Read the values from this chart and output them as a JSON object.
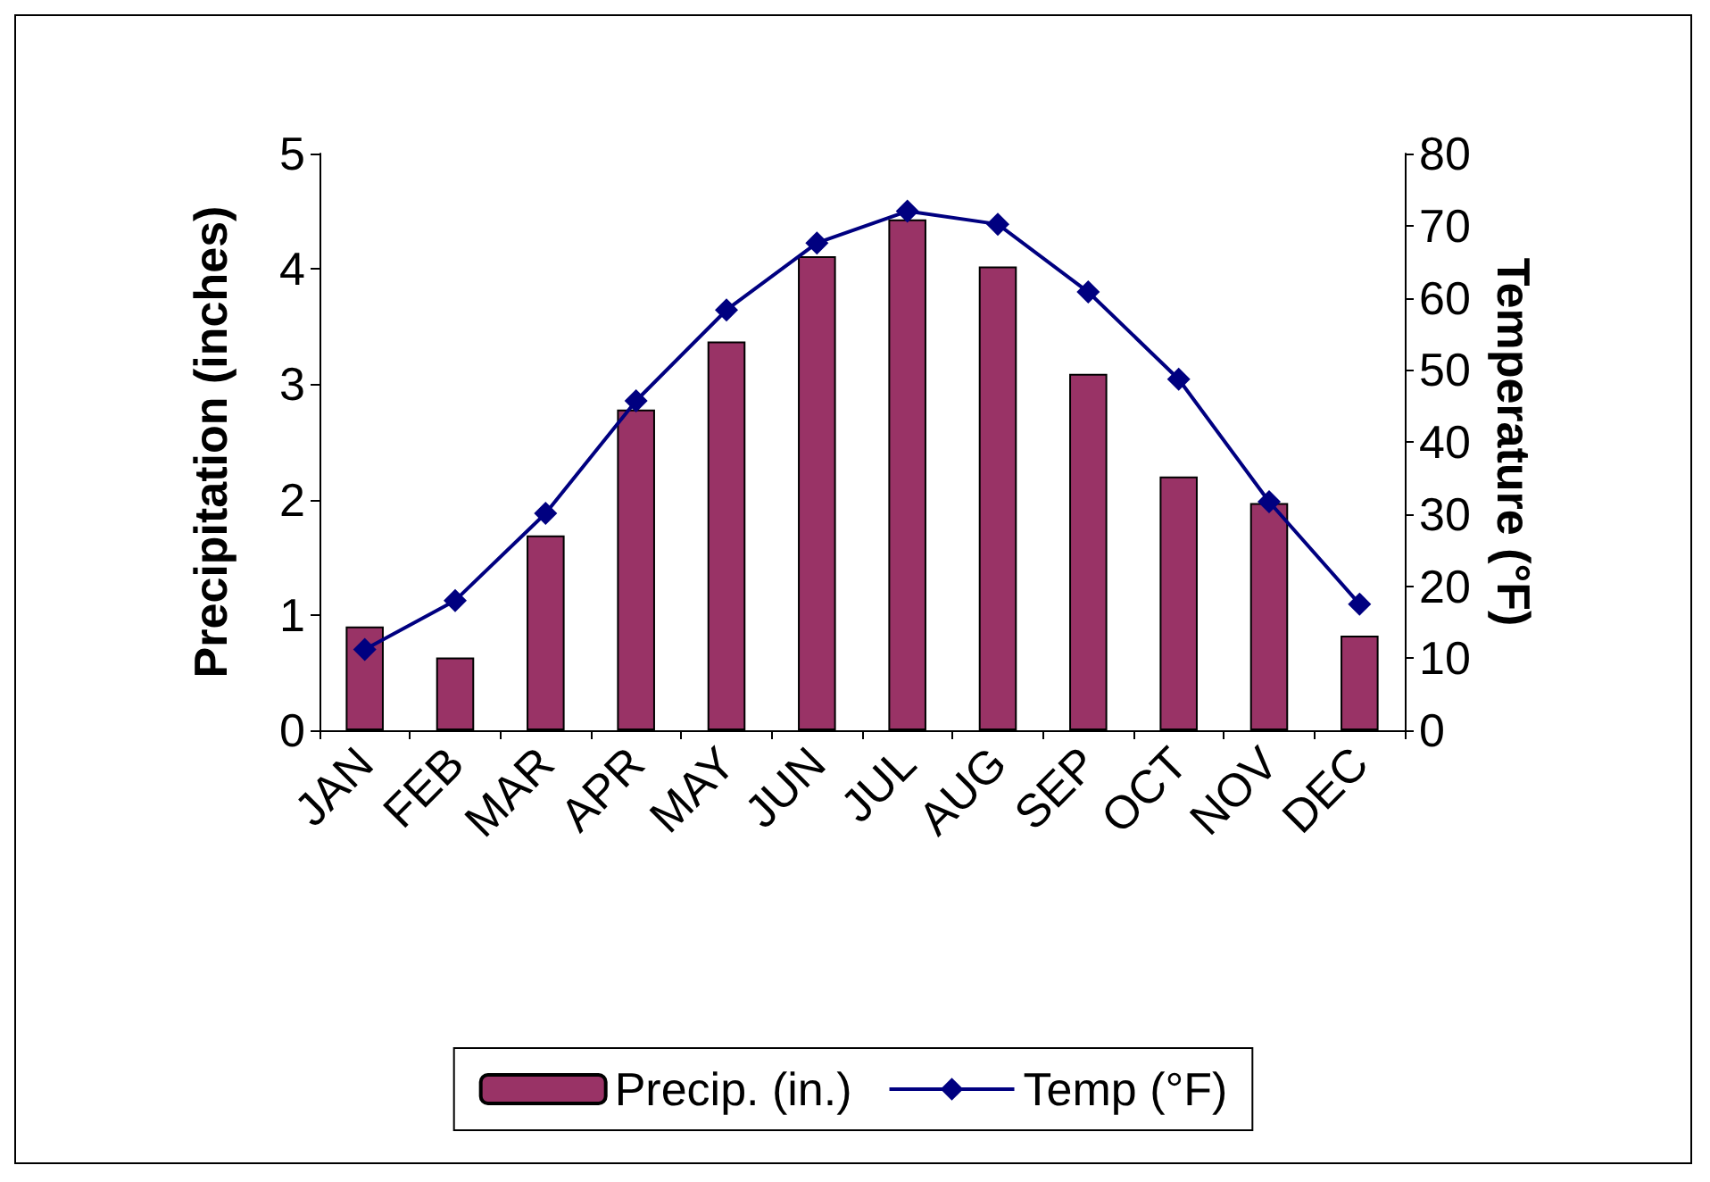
{
  "chart_data": {
    "type": "bar",
    "ylabel": "Precipitation (inches)",
    "y2label": "Temperature (°F)",
    "categories": [
      "JAN",
      "FEB",
      "MAR",
      "APR",
      "MAY",
      "JUN",
      "JUL",
      "AUG",
      "SEP",
      "OCT",
      "NOV",
      "DEC"
    ],
    "series": [
      {
        "name": "Precip. (in.)",
        "color": "#993366",
        "values": [
          0.9,
          0.63,
          1.69,
          2.78,
          3.37,
          4.11,
          4.43,
          4.02,
          3.09,
          2.2,
          1.97,
          0.82
        ]
      },
      {
        "name": "Temp (°F)",
        "type": "line",
        "axis": "y2",
        "color": "#000080",
        "marker": "diamond",
        "line_style": "solid",
        "values": [
          11.2,
          18,
          30.1,
          45.7,
          58.3,
          67.6,
          72,
          70.2,
          60.8,
          48.7,
          31.7,
          17.5
        ]
      }
    ],
    "ylim": [
      0,
      5
    ],
    "yticks": [
      0,
      1,
      2,
      3,
      4,
      5
    ],
    "y2lim": [
      0,
      80
    ],
    "y2ticks": [
      0,
      10,
      20,
      30,
      40,
      50,
      60,
      70,
      80
    ],
    "grid": false,
    "legend": "bottom"
  }
}
